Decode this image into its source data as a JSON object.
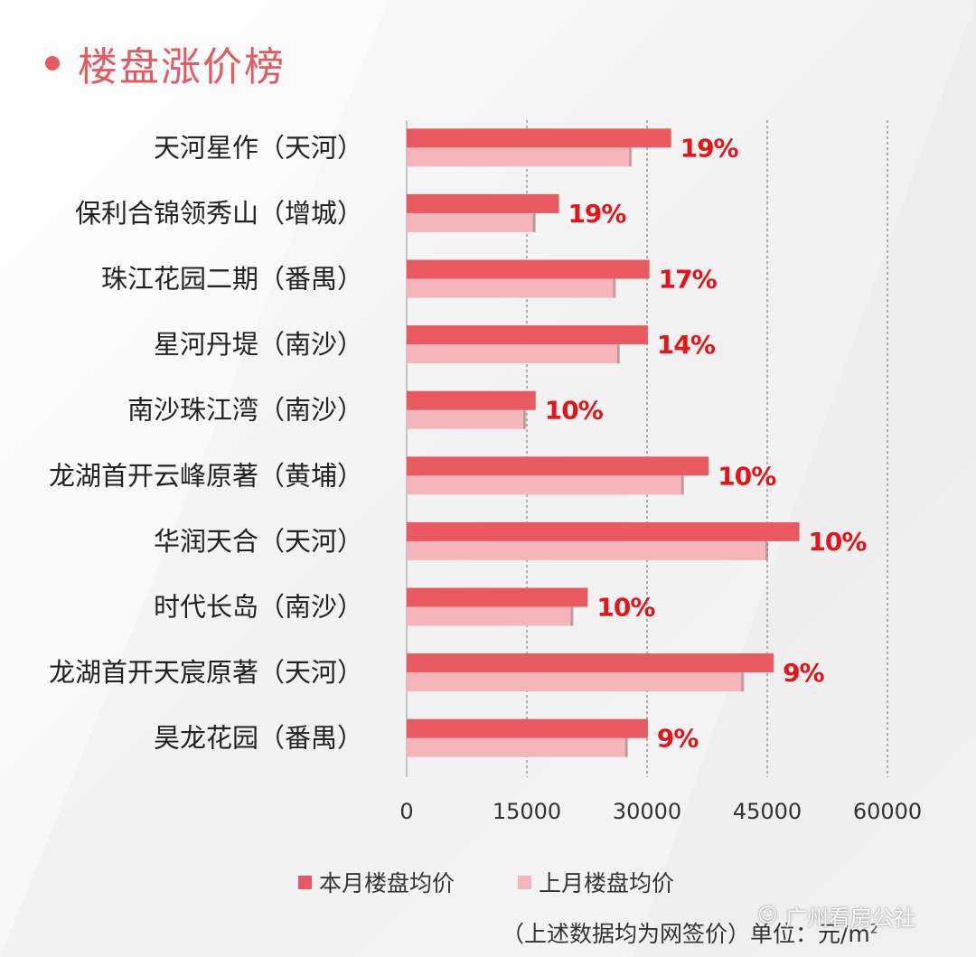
{
  "page": {
    "title": "楼盘涨价榜"
  },
  "chart_data": {
    "type": "bar",
    "orientation": "horizontal",
    "categories": [
      "天河星作（天河）",
      "保利合锦领秀山（增城）",
      "珠江花园二期（番禺）",
      "星河丹堤（南沙）",
      "南沙珠江湾（南沙）",
      "龙湖首开云峰原著（黄埔）",
      "华润天合（天河）",
      "时代长岛（南沙）",
      "龙湖首开天宸原著（天河）",
      "昊龙花园（番禺）"
    ],
    "series": [
      {
        "name": "本月楼盘均价",
        "color": "#e85a60",
        "values": [
          33000,
          19000,
          30300,
          30100,
          16100,
          37700,
          49000,
          22600,
          45800,
          30100
        ]
      },
      {
        "name": "上月楼盘均价",
        "color": "#f4b6ba",
        "values": [
          28000,
          16000,
          26000,
          26500,
          14800,
          34500,
          45000,
          20700,
          42000,
          27500
        ]
      }
    ],
    "data_labels": [
      "19%",
      "19%",
      "17%",
      "14%",
      "10%",
      "10%",
      "10%",
      "10%",
      "9%",
      "9%"
    ],
    "label_color": "#e3141a",
    "xlim": [
      0,
      60000
    ],
    "xticks": [
      "0",
      "15000",
      "30000",
      "45000",
      "60000"
    ],
    "grid": "vertical-dashed",
    "legend": "bottom"
  },
  "footer": {
    "note": "（上述数据均为网签价）单位：元/m",
    "note_sup": "2",
    "watermark": "广州看房公社"
  }
}
